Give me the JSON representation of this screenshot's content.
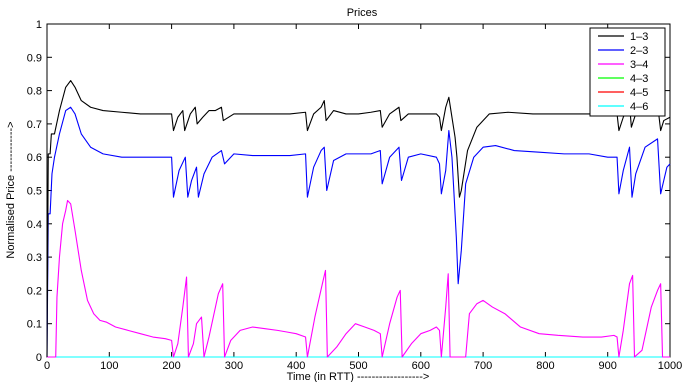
{
  "chart_data": {
    "type": "line",
    "title": "Prices",
    "xlabel": "Time (in RTT) ------------------>",
    "ylabel": "Normalised Price ------------>",
    "xlim": [
      0,
      1000
    ],
    "ylim": [
      0,
      1
    ],
    "xticks": [
      "0",
      "100",
      "200",
      "300",
      "400",
      "500",
      "600",
      "700",
      "800",
      "900",
      "1000"
    ],
    "yticks": [
      "0",
      "0.1",
      "0.2",
      "0.3",
      "0.4",
      "0.5",
      "0.6",
      "0.7",
      "0.8",
      "0.9",
      "1"
    ],
    "grid": false,
    "legend_position": "top-right",
    "series": [
      {
        "name": "1–3",
        "color": "#000000",
        "points": [
          [
            0,
            0
          ],
          [
            2,
            0.61
          ],
          [
            5,
            0.61
          ],
          [
            7,
            0.67
          ],
          [
            12,
            0.67
          ],
          [
            20,
            0.74
          ],
          [
            30,
            0.81
          ],
          [
            38,
            0.83
          ],
          [
            45,
            0.81
          ],
          [
            55,
            0.77
          ],
          [
            70,
            0.75
          ],
          [
            90,
            0.74
          ],
          [
            120,
            0.735
          ],
          [
            150,
            0.73
          ],
          [
            180,
            0.73
          ],
          [
            200,
            0.73
          ],
          [
            203,
            0.68
          ],
          [
            210,
            0.72
          ],
          [
            218,
            0.74
          ],
          [
            221,
            0.68
          ],
          [
            230,
            0.73
          ],
          [
            238,
            0.75
          ],
          [
            241,
            0.7
          ],
          [
            250,
            0.72
          ],
          [
            260,
            0.74
          ],
          [
            270,
            0.74
          ],
          [
            280,
            0.75
          ],
          [
            283,
            0.71
          ],
          [
            300,
            0.73
          ],
          [
            330,
            0.73
          ],
          [
            360,
            0.73
          ],
          [
            390,
            0.73
          ],
          [
            415,
            0.735
          ],
          [
            418,
            0.68
          ],
          [
            428,
            0.73
          ],
          [
            440,
            0.75
          ],
          [
            445,
            0.77
          ],
          [
            448,
            0.71
          ],
          [
            460,
            0.74
          ],
          [
            480,
            0.73
          ],
          [
            500,
            0.73
          ],
          [
            520,
            0.735
          ],
          [
            535,
            0.74
          ],
          [
            538,
            0.69
          ],
          [
            550,
            0.73
          ],
          [
            565,
            0.75
          ],
          [
            568,
            0.71
          ],
          [
            580,
            0.73
          ],
          [
            600,
            0.73
          ],
          [
            625,
            0.73
          ],
          [
            630,
            0.72
          ],
          [
            633,
            0.68
          ],
          [
            640,
            0.75
          ],
          [
            645,
            0.78
          ],
          [
            650,
            0.72
          ],
          [
            655,
            0.66
          ],
          [
            658,
            0.6
          ],
          [
            662,
            0.48
          ],
          [
            665,
            0.5
          ],
          [
            675,
            0.62
          ],
          [
            690,
            0.69
          ],
          [
            710,
            0.73
          ],
          [
            740,
            0.735
          ],
          [
            780,
            0.73
          ],
          [
            820,
            0.73
          ],
          [
            860,
            0.73
          ],
          [
            890,
            0.73
          ],
          [
            915,
            0.73
          ],
          [
            918,
            0.68
          ],
          [
            925,
            0.72
          ],
          [
            935,
            0.76
          ],
          [
            938,
            0.69
          ],
          [
            945,
            0.73
          ],
          [
            960,
            0.755
          ],
          [
            980,
            0.76
          ],
          [
            985,
            0.68
          ],
          [
            990,
            0.71
          ],
          [
            1000,
            0.72
          ]
        ]
      },
      {
        "name": "2–3",
        "color": "#0000ff",
        "points": [
          [
            0,
            0
          ],
          [
            2,
            0.43
          ],
          [
            5,
            0.43
          ],
          [
            8,
            0.55
          ],
          [
            12,
            0.6
          ],
          [
            20,
            0.67
          ],
          [
            30,
            0.74
          ],
          [
            38,
            0.75
          ],
          [
            45,
            0.73
          ],
          [
            55,
            0.67
          ],
          [
            70,
            0.63
          ],
          [
            90,
            0.61
          ],
          [
            120,
            0.6
          ],
          [
            150,
            0.6
          ],
          [
            180,
            0.6
          ],
          [
            200,
            0.6
          ],
          [
            203,
            0.48
          ],
          [
            212,
            0.56
          ],
          [
            222,
            0.6
          ],
          [
            226,
            0.48
          ],
          [
            232,
            0.53
          ],
          [
            240,
            0.57
          ],
          [
            243,
            0.48
          ],
          [
            252,
            0.55
          ],
          [
            265,
            0.6
          ],
          [
            280,
            0.62
          ],
          [
            285,
            0.58
          ],
          [
            300,
            0.61
          ],
          [
            330,
            0.605
          ],
          [
            360,
            0.605
          ],
          [
            390,
            0.605
          ],
          [
            415,
            0.61
          ],
          [
            418,
            0.48
          ],
          [
            428,
            0.57
          ],
          [
            440,
            0.62
          ],
          [
            445,
            0.63
          ],
          [
            449,
            0.5
          ],
          [
            460,
            0.59
          ],
          [
            480,
            0.61
          ],
          [
            500,
            0.61
          ],
          [
            520,
            0.61
          ],
          [
            535,
            0.62
          ],
          [
            538,
            0.52
          ],
          [
            550,
            0.6
          ],
          [
            565,
            0.63
          ],
          [
            569,
            0.53
          ],
          [
            580,
            0.6
          ],
          [
            600,
            0.61
          ],
          [
            625,
            0.6
          ],
          [
            630,
            0.58
          ],
          [
            633,
            0.49
          ],
          [
            640,
            0.56
          ],
          [
            645,
            0.68
          ],
          [
            650,
            0.6
          ],
          [
            653,
            0.5
          ],
          [
            657,
            0.36
          ],
          [
            660,
            0.22
          ],
          [
            665,
            0.32
          ],
          [
            672,
            0.52
          ],
          [
            685,
            0.6
          ],
          [
            700,
            0.63
          ],
          [
            720,
            0.635
          ],
          [
            750,
            0.62
          ],
          [
            790,
            0.615
          ],
          [
            830,
            0.61
          ],
          [
            870,
            0.61
          ],
          [
            900,
            0.6
          ],
          [
            915,
            0.6
          ],
          [
            918,
            0.49
          ],
          [
            925,
            0.56
          ],
          [
            935,
            0.63
          ],
          [
            939,
            0.48
          ],
          [
            945,
            0.55
          ],
          [
            960,
            0.63
          ],
          [
            980,
            0.655
          ],
          [
            985,
            0.49
          ],
          [
            990,
            0.53
          ],
          [
            995,
            0.57
          ],
          [
            1000,
            0.58
          ]
        ]
      },
      {
        "name": "3–4",
        "color": "#ff00ff",
        "points": [
          [
            0,
            0
          ],
          [
            14,
            0
          ],
          [
            16,
            0.18
          ],
          [
            20,
            0.3
          ],
          [
            25,
            0.4
          ],
          [
            30,
            0.44
          ],
          [
            33,
            0.47
          ],
          [
            38,
            0.46
          ],
          [
            45,
            0.38
          ],
          [
            55,
            0.26
          ],
          [
            65,
            0.17
          ],
          [
            75,
            0.13
          ],
          [
            85,
            0.11
          ],
          [
            95,
            0.105
          ],
          [
            110,
            0.09
          ],
          [
            130,
            0.08
          ],
          [
            150,
            0.07
          ],
          [
            170,
            0.06
          ],
          [
            190,
            0.055
          ],
          [
            200,
            0.05
          ],
          [
            203,
            0
          ],
          [
            210,
            0.04
          ],
          [
            218,
            0.15
          ],
          [
            224,
            0.24
          ],
          [
            227,
            0
          ],
          [
            235,
            0.04
          ],
          [
            240,
            0.1
          ],
          [
            248,
            0.12
          ],
          [
            252,
            0
          ],
          [
            260,
            0.06
          ],
          [
            275,
            0.19
          ],
          [
            282,
            0.22
          ],
          [
            285,
            0
          ],
          [
            295,
            0.05
          ],
          [
            310,
            0.08
          ],
          [
            330,
            0.09
          ],
          [
            350,
            0.085
          ],
          [
            370,
            0.08
          ],
          [
            385,
            0.075
          ],
          [
            400,
            0.07
          ],
          [
            415,
            0.06
          ],
          [
            418,
            0
          ],
          [
            430,
            0.12
          ],
          [
            442,
            0.22
          ],
          [
            447,
            0.26
          ],
          [
            450,
            0
          ],
          [
            465,
            0.03
          ],
          [
            480,
            0.07
          ],
          [
            495,
            0.1
          ],
          [
            510,
            0.09
          ],
          [
            525,
            0.08
          ],
          [
            535,
            0.07
          ],
          [
            538,
            0
          ],
          [
            550,
            0.1
          ],
          [
            562,
            0.18
          ],
          [
            567,
            0.2
          ],
          [
            570,
            0
          ],
          [
            585,
            0.04
          ],
          [
            600,
            0.07
          ],
          [
            615,
            0.08
          ],
          [
            625,
            0.09
          ],
          [
            630,
            0.08
          ],
          [
            633,
            0
          ],
          [
            640,
            0.15
          ],
          [
            644,
            0.25
          ],
          [
            647,
            0
          ],
          [
            655,
            0
          ],
          [
            672,
            0
          ],
          [
            678,
            0.13
          ],
          [
            690,
            0.16
          ],
          [
            700,
            0.17
          ],
          [
            715,
            0.15
          ],
          [
            735,
            0.13
          ],
          [
            760,
            0.09
          ],
          [
            790,
            0.07
          ],
          [
            820,
            0.065
          ],
          [
            860,
            0.06
          ],
          [
            890,
            0.06
          ],
          [
            910,
            0.065
          ],
          [
            915,
            0.06
          ],
          [
            918,
            0
          ],
          [
            925,
            0.08
          ],
          [
            935,
            0.22
          ],
          [
            940,
            0.245
          ],
          [
            943,
            0
          ],
          [
            955,
            0.02
          ],
          [
            970,
            0.15
          ],
          [
            980,
            0.2
          ],
          [
            985,
            0.22
          ],
          [
            988,
            0
          ],
          [
            1000,
            0
          ]
        ]
      },
      {
        "name": "4–3",
        "color": "#00ff00",
        "points": [
          [
            0,
            0
          ],
          [
            1000,
            0
          ]
        ]
      },
      {
        "name": "4–5",
        "color": "#ff0000",
        "points": [
          [
            0,
            0
          ],
          [
            1000,
            0
          ]
        ]
      },
      {
        "name": "4–6",
        "color": "#00ffff",
        "points": [
          [
            0,
            0
          ],
          [
            1000,
            0
          ]
        ]
      }
    ]
  }
}
